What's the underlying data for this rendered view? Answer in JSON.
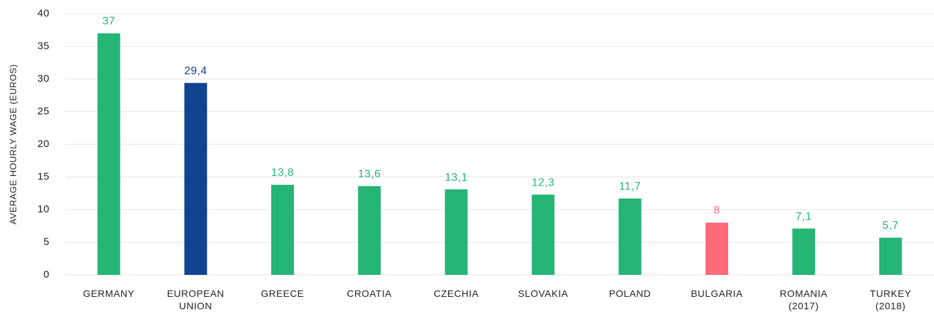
{
  "chart_data": {
    "type": "bar",
    "y_axis_label": "AVERAGE HOURLY WAGE (EUROS)",
    "categories": [
      "GERMANY",
      "EUROPEAN UNION",
      "GREECE",
      "CROATIA",
      "CZECHIA",
      "SLOVAKIA",
      "POLAND",
      "BULGARIA",
      "ROMANIA (2017)",
      "TURKEY (2018)"
    ],
    "values": [
      37,
      29.4,
      13.8,
      13.6,
      13.1,
      12.3,
      11.7,
      8,
      7.1,
      5.7
    ],
    "value_labels": [
      "37",
      "29,4",
      "13,8",
      "13,6",
      "13,1",
      "12,3",
      "11,7",
      "8",
      "7,1",
      "5,7"
    ],
    "colors": [
      "#25b574",
      "#114490",
      "#25b574",
      "#25b574",
      "#25b574",
      "#25b574",
      "#25b574",
      "#ff6b7a",
      "#25b574",
      "#25b574"
    ],
    "ylim": [
      0,
      40
    ],
    "yticks": [
      0,
      5,
      10,
      15,
      20,
      25,
      30,
      35,
      40
    ],
    "grid": true
  }
}
